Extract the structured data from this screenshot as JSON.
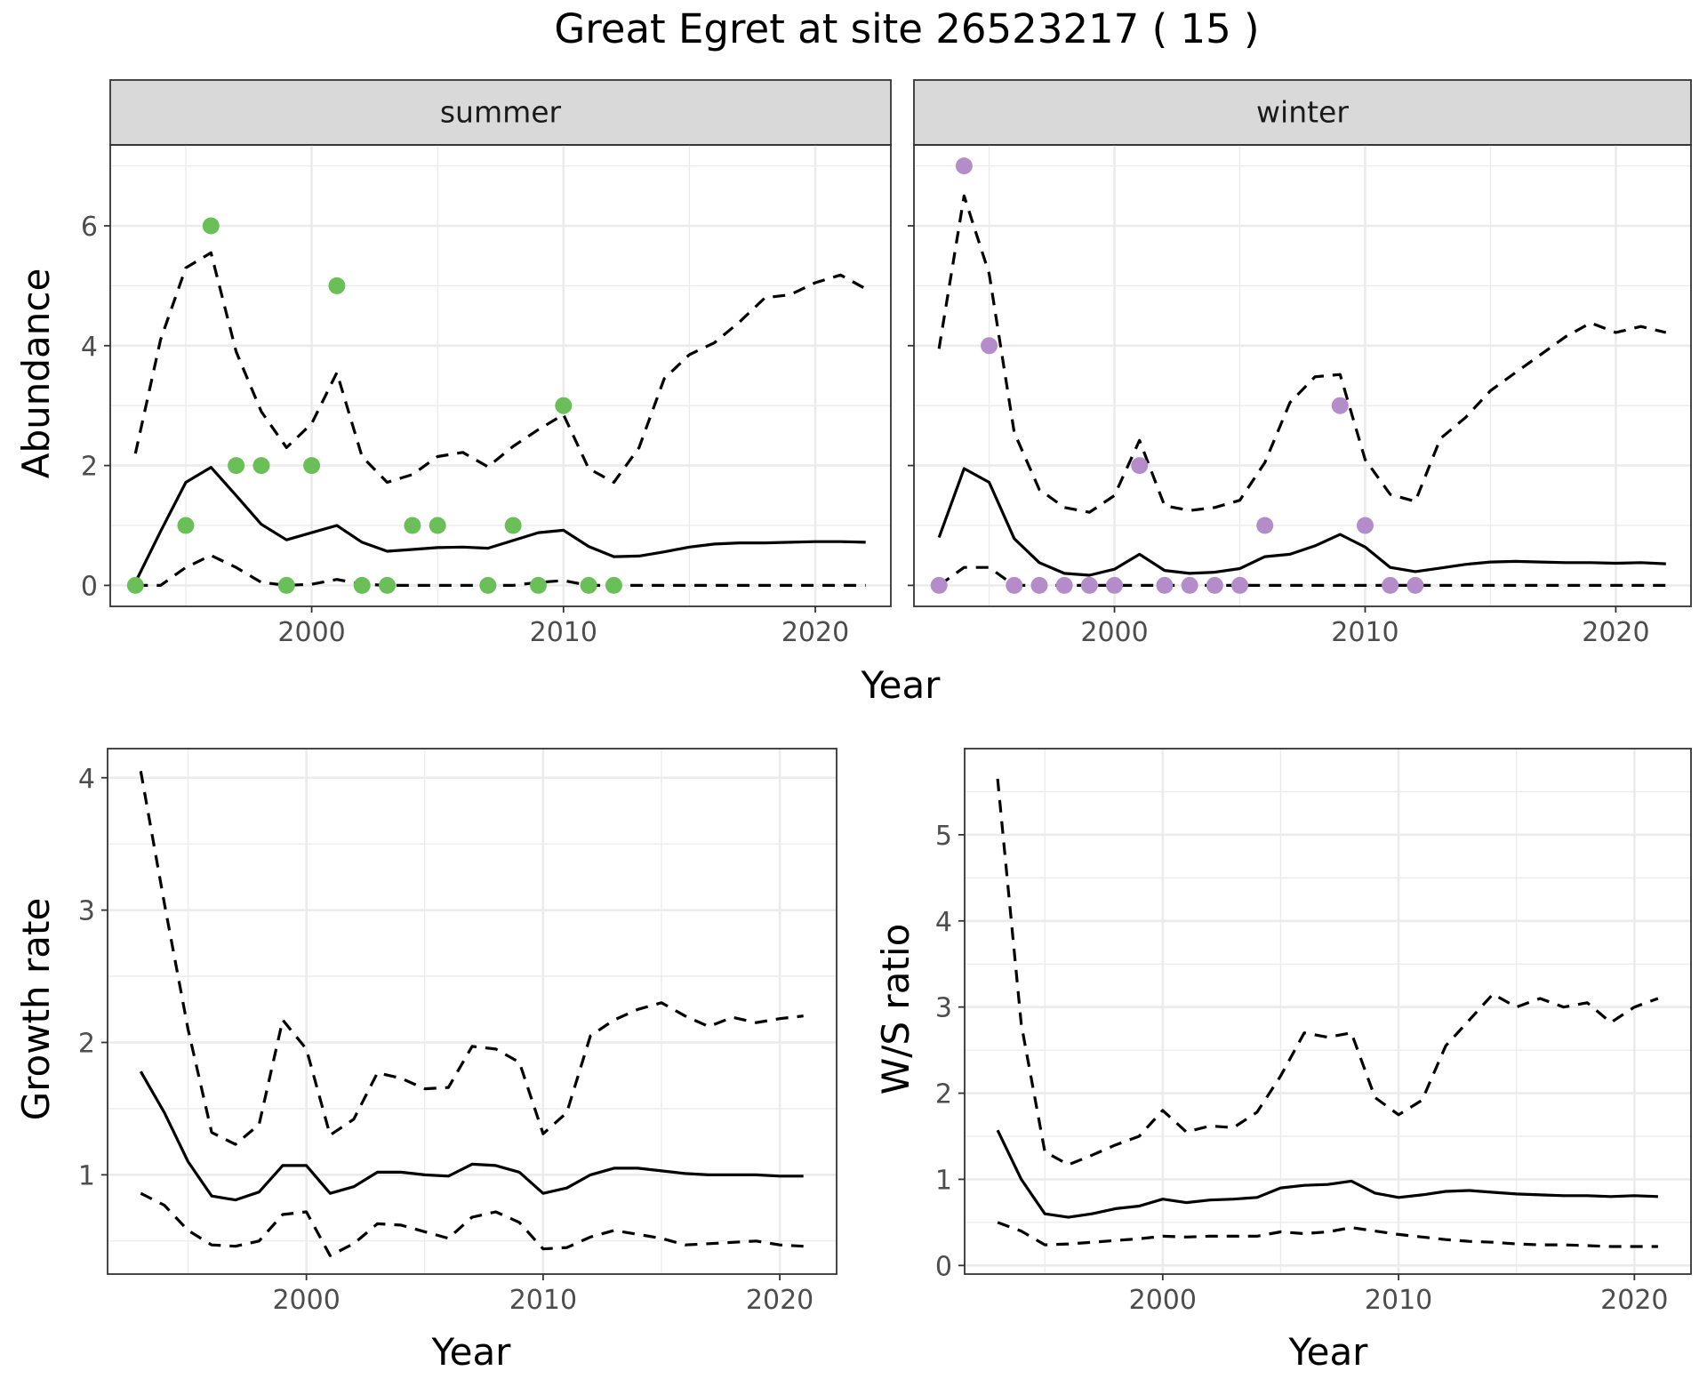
{
  "title": "Great Egret at site 26523217 ( 15 )",
  "colors": {
    "summer": "#6abf59",
    "winter": "#b48cca",
    "line": "#000000"
  },
  "chart_data": [
    {
      "type": "line",
      "facet": "summer",
      "xlabel": "Year",
      "ylabel": "Abundance",
      "xlim": [
        1992,
        2023
      ],
      "ylim": [
        -0.35,
        7.35
      ],
      "xticks": [
        2000,
        2010,
        2020
      ],
      "yticks": [
        0,
        2,
        4,
        6
      ],
      "grid": true,
      "point_color": "#6abf59",
      "points": {
        "x": [
          1993,
          1995,
          1996,
          1997,
          1998,
          1999,
          2000,
          2001,
          2002,
          2003,
          2004,
          2005,
          2007,
          2008,
          2009,
          2010,
          2011,
          2012
        ],
        "y": [
          0,
          1,
          6,
          2,
          2,
          0,
          2,
          5,
          0,
          0,
          1,
          1,
          0,
          1,
          0,
          3,
          0,
          0
        ]
      },
      "series": [
        {
          "role": "estimate",
          "x": [
            1993,
            1994,
            1995,
            1996,
            1997,
            1998,
            1999,
            2000,
            2001,
            2002,
            2003,
            2004,
            2005,
            2006,
            2007,
            2008,
            2009,
            2010,
            2011,
            2012,
            2013,
            2014,
            2015,
            2016,
            2017,
            2018,
            2019,
            2020,
            2021,
            2022
          ],
          "y": [
            0.05,
            0.9,
            1.72,
            1.97,
            1.5,
            1.02,
            0.76,
            0.88,
            1.0,
            0.72,
            0.57,
            0.6,
            0.63,
            0.64,
            0.62,
            0.75,
            0.88,
            0.92,
            0.65,
            0.48,
            0.49,
            0.56,
            0.64,
            0.69,
            0.71,
            0.71,
            0.72,
            0.73,
            0.73,
            0.72
          ]
        },
        {
          "role": "upper-ci",
          "x": [
            1993,
            1994,
            1995,
            1996,
            1997,
            1998,
            1999,
            2000,
            2001,
            2002,
            2003,
            2004,
            2005,
            2006,
            2007,
            2008,
            2009,
            2010,
            2011,
            2012,
            2013,
            2014,
            2015,
            2016,
            2017,
            2018,
            2019,
            2020,
            2021,
            2022
          ],
          "y": [
            2.2,
            4.1,
            5.3,
            5.55,
            3.9,
            2.9,
            2.3,
            2.7,
            3.55,
            2.15,
            1.72,
            1.85,
            2.15,
            2.22,
            1.98,
            2.32,
            2.6,
            2.85,
            1.95,
            1.72,
            2.3,
            3.45,
            3.85,
            4.05,
            4.4,
            4.8,
            4.85,
            5.05,
            5.18,
            4.95
          ]
        },
        {
          "role": "lower-ci",
          "x": [
            1993,
            1994,
            1995,
            1996,
            1997,
            1998,
            1999,
            2000,
            2001,
            2002,
            2003,
            2004,
            2005,
            2006,
            2007,
            2008,
            2009,
            2010,
            2011,
            2012,
            2013,
            2014,
            2015,
            2016,
            2017,
            2018,
            2019,
            2020,
            2021,
            2022
          ],
          "y": [
            0,
            0,
            0.3,
            0.5,
            0.3,
            0.05,
            0,
            0.02,
            0.1,
            0.02,
            0,
            0,
            0,
            0,
            0,
            0,
            0.05,
            0.08,
            0,
            0,
            0,
            0,
            0,
            0,
            0,
            0,
            0,
            0,
            0,
            0
          ]
        }
      ]
    },
    {
      "type": "line",
      "facet": "winter",
      "xlabel": "Year",
      "ylabel": "Abundance",
      "xlim": [
        1992,
        2023
      ],
      "ylim": [
        -0.35,
        7.35
      ],
      "xticks": [
        2000,
        2010,
        2020
      ],
      "yticks": [
        0,
        2,
        4,
        6
      ],
      "grid": true,
      "point_color": "#b48cca",
      "points": {
        "x": [
          1993,
          1994,
          1995,
          1996,
          1997,
          1998,
          1999,
          2000,
          2001,
          2002,
          2003,
          2004,
          2005,
          2006,
          2009,
          2010,
          2011,
          2012
        ],
        "y": [
          0,
          7,
          4,
          0,
          0,
          0,
          0,
          0,
          2,
          0,
          0,
          0,
          0,
          1,
          3,
          1,
          0,
          0
        ]
      },
      "series": [
        {
          "role": "estimate",
          "x": [
            1993,
            1994,
            1995,
            1996,
            1997,
            1998,
            1999,
            2000,
            2001,
            2002,
            2003,
            2004,
            2005,
            2006,
            2007,
            2008,
            2009,
            2010,
            2011,
            2012,
            2013,
            2014,
            2015,
            2016,
            2017,
            2018,
            2019,
            2020,
            2021,
            2022
          ],
          "y": [
            0.8,
            1.95,
            1.72,
            0.78,
            0.38,
            0.2,
            0.17,
            0.27,
            0.52,
            0.25,
            0.2,
            0.22,
            0.28,
            0.48,
            0.52,
            0.66,
            0.85,
            0.64,
            0.3,
            0.23,
            0.29,
            0.35,
            0.39,
            0.4,
            0.39,
            0.38,
            0.38,
            0.37,
            0.38,
            0.36
          ]
        },
        {
          "role": "upper-ci",
          "x": [
            1993,
            1994,
            1995,
            1996,
            1997,
            1998,
            1999,
            2000,
            2001,
            2002,
            2003,
            2004,
            2005,
            2006,
            2007,
            2008,
            2009,
            2010,
            2011,
            2012,
            2013,
            2014,
            2015,
            2016,
            2017,
            2018,
            2019,
            2020,
            2021,
            2022
          ],
          "y": [
            3.95,
            6.5,
            5.2,
            2.55,
            1.6,
            1.3,
            1.22,
            1.5,
            2.42,
            1.33,
            1.25,
            1.3,
            1.42,
            2.05,
            3.05,
            3.48,
            3.52,
            2.1,
            1.52,
            1.4,
            2.45,
            2.8,
            3.25,
            3.55,
            3.85,
            4.15,
            4.38,
            4.22,
            4.32,
            4.22
          ]
        },
        {
          "role": "lower-ci",
          "x": [
            1993,
            1994,
            1995,
            1996,
            1997,
            1998,
            1999,
            2000,
            2001,
            2002,
            2003,
            2004,
            2005,
            2006,
            2007,
            2008,
            2009,
            2010,
            2011,
            2012,
            2013,
            2014,
            2015,
            2016,
            2017,
            2018,
            2019,
            2020,
            2021,
            2022
          ],
          "y": [
            0,
            0.3,
            0.3,
            0,
            0,
            0,
            0,
            0,
            0,
            0,
            0,
            0,
            0,
            0,
            0,
            0,
            0,
            0,
            0,
            0,
            0,
            0,
            0,
            0,
            0,
            0,
            0,
            0,
            0,
            0
          ]
        }
      ]
    },
    {
      "type": "line",
      "xlabel": "Year",
      "ylabel": "Growth rate",
      "xlim": [
        1991.6,
        2022.4
      ],
      "ylim": [
        0.25,
        4.22
      ],
      "xticks": [
        2000,
        2010,
        2020
      ],
      "yticks": [
        1,
        2,
        3,
        4
      ],
      "grid": true,
      "series": [
        {
          "role": "estimate",
          "x": [
            1993,
            1994,
            1995,
            1996,
            1997,
            1998,
            1999,
            2000,
            2001,
            2002,
            2003,
            2004,
            2005,
            2006,
            2007,
            2008,
            2009,
            2010,
            2011,
            2012,
            2013,
            2014,
            2015,
            2016,
            2017,
            2018,
            2019,
            2020,
            2021
          ],
          "y": [
            1.78,
            1.47,
            1.1,
            0.84,
            0.81,
            0.87,
            1.07,
            1.07,
            0.86,
            0.91,
            1.02,
            1.02,
            1.0,
            0.99,
            1.08,
            1.07,
            1.02,
            0.86,
            0.9,
            1.0,
            1.05,
            1.05,
            1.03,
            1.01,
            1.0,
            1.0,
            1.0,
            0.99,
            0.99
          ]
        },
        {
          "role": "upper-ci",
          "x": [
            1993,
            1994,
            1995,
            1996,
            1997,
            1998,
            1999,
            2000,
            2001,
            2002,
            2003,
            2004,
            2005,
            2006,
            2007,
            2008,
            2009,
            2010,
            2011,
            2012,
            2013,
            2014,
            2015,
            2016,
            2017,
            2018,
            2019,
            2020,
            2021
          ],
          "y": [
            4.05,
            3.05,
            2.1,
            1.32,
            1.23,
            1.38,
            2.17,
            1.95,
            1.3,
            1.42,
            1.77,
            1.73,
            1.65,
            1.66,
            1.97,
            1.95,
            1.85,
            1.31,
            1.47,
            2.05,
            2.17,
            2.25,
            2.3,
            2.2,
            2.12,
            2.19,
            2.15,
            2.18,
            2.2
          ]
        },
        {
          "role": "lower-ci",
          "x": [
            1993,
            1994,
            1995,
            1996,
            1997,
            1998,
            1999,
            2000,
            2001,
            2002,
            2003,
            2004,
            2005,
            2006,
            2007,
            2008,
            2009,
            2010,
            2011,
            2012,
            2013,
            2014,
            2015,
            2016,
            2017,
            2018,
            2019,
            2020,
            2021
          ],
          "y": [
            0.86,
            0.77,
            0.58,
            0.47,
            0.46,
            0.5,
            0.7,
            0.72,
            0.39,
            0.48,
            0.63,
            0.62,
            0.57,
            0.52,
            0.68,
            0.72,
            0.64,
            0.44,
            0.45,
            0.53,
            0.58,
            0.55,
            0.52,
            0.47,
            0.48,
            0.49,
            0.5,
            0.47,
            0.46
          ]
        }
      ]
    },
    {
      "type": "line",
      "xlabel": "Year",
      "ylabel": "W/S ratio",
      "xlim": [
        1991.6,
        2022.4
      ],
      "ylim": [
        -0.1,
        6.0
      ],
      "xticks": [
        2000,
        2010,
        2020
      ],
      "yticks": [
        0,
        1,
        2,
        3,
        4,
        5
      ],
      "grid": true,
      "series": [
        {
          "role": "estimate",
          "x": [
            1993,
            1994,
            1995,
            1996,
            1997,
            1998,
            1999,
            2000,
            2001,
            2002,
            2003,
            2004,
            2005,
            2006,
            2007,
            2008,
            2009,
            2010,
            2011,
            2012,
            2013,
            2014,
            2015,
            2016,
            2017,
            2018,
            2019,
            2020,
            2021
          ],
          "y": [
            1.57,
            1.0,
            0.6,
            0.56,
            0.6,
            0.66,
            0.69,
            0.77,
            0.73,
            0.76,
            0.77,
            0.79,
            0.9,
            0.93,
            0.94,
            0.98,
            0.84,
            0.79,
            0.82,
            0.86,
            0.87,
            0.85,
            0.83,
            0.82,
            0.81,
            0.81,
            0.8,
            0.81,
            0.8
          ]
        },
        {
          "role": "upper-ci",
          "x": [
            1993,
            1994,
            1995,
            1996,
            1997,
            1998,
            1999,
            2000,
            2001,
            2002,
            2003,
            2004,
            2005,
            2006,
            2007,
            2008,
            2009,
            2010,
            2011,
            2012,
            2013,
            2014,
            2015,
            2016,
            2017,
            2018,
            2019,
            2020,
            2021
          ],
          "y": [
            5.65,
            2.8,
            1.32,
            1.17,
            1.28,
            1.4,
            1.5,
            1.8,
            1.55,
            1.62,
            1.6,
            1.78,
            2.2,
            2.7,
            2.65,
            2.7,
            1.95,
            1.75,
            1.92,
            2.55,
            2.85,
            3.15,
            3.0,
            3.1,
            3.0,
            3.05,
            2.82,
            3.0,
            3.1
          ]
        },
        {
          "role": "lower-ci",
          "x": [
            1993,
            1994,
            1995,
            1996,
            1997,
            1998,
            1999,
            2000,
            2001,
            2002,
            2003,
            2004,
            2005,
            2006,
            2007,
            2008,
            2009,
            2010,
            2011,
            2012,
            2013,
            2014,
            2015,
            2016,
            2017,
            2018,
            2019,
            2020,
            2021
          ],
          "y": [
            0.5,
            0.4,
            0.24,
            0.25,
            0.27,
            0.29,
            0.31,
            0.34,
            0.33,
            0.34,
            0.34,
            0.34,
            0.39,
            0.37,
            0.39,
            0.44,
            0.4,
            0.36,
            0.33,
            0.3,
            0.28,
            0.27,
            0.25,
            0.24,
            0.24,
            0.23,
            0.22,
            0.22,
            0.22
          ]
        }
      ]
    }
  ]
}
